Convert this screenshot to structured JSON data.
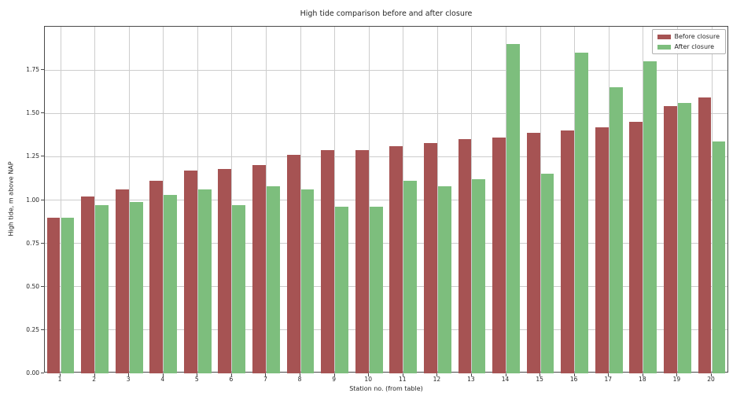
{
  "chart_data": {
    "type": "bar",
    "title": "High tide comparison before and after closure",
    "xlabel": "Station no. (from table)",
    "ylabel": "High tide, m above NAP",
    "categories": [
      "1",
      "2",
      "3",
      "4",
      "5",
      "6",
      "7",
      "8",
      "9",
      "10",
      "11",
      "12",
      "13",
      "14",
      "15",
      "16",
      "17",
      "18",
      "19",
      "20"
    ],
    "series": [
      {
        "name": "Before closure",
        "color": "#a65353",
        "values": [
          0.9,
          1.02,
          1.06,
          1.11,
          1.17,
          1.18,
          1.2,
          1.26,
          1.29,
          1.29,
          1.31,
          1.33,
          1.35,
          1.36,
          1.39,
          1.4,
          1.42,
          1.45,
          1.54,
          1.59
        ]
      },
      {
        "name": "After closure",
        "color": "#7dbe7d",
        "values": [
          0.9,
          0.97,
          0.99,
          1.03,
          1.06,
          0.97,
          1.08,
          1.06,
          0.96,
          0.96,
          1.11,
          1.08,
          1.12,
          1.9,
          1.15,
          1.85,
          1.65,
          1.8,
          1.56,
          1.34
        ]
      }
    ],
    "ylim": [
      0,
      2.0
    ],
    "yticks": [
      0,
      0.25,
      0.5,
      0.75,
      1.0,
      1.25,
      1.5,
      1.75
    ],
    "grid": true,
    "legend_position": "upper right"
  },
  "colors": {
    "grid": "#cdcdcd",
    "spine": "#4a4a4a",
    "text": "#262626"
  }
}
